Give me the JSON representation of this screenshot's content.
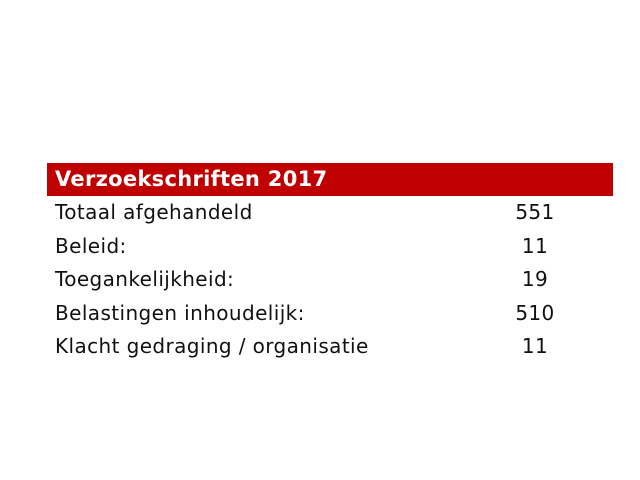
{
  "table": {
    "title": "Verzoekschriften 2017",
    "rows": [
      [
        "Totaal afgehandeld",
        551
      ],
      [
        "Beleid:",
        11
      ],
      [
        "Toegankelijkheid:",
        19
      ],
      [
        "Belastingen inhoudelijk:",
        510
      ],
      [
        "Klacht gedraging / organisatie",
        11
      ]
    ]
  }
}
